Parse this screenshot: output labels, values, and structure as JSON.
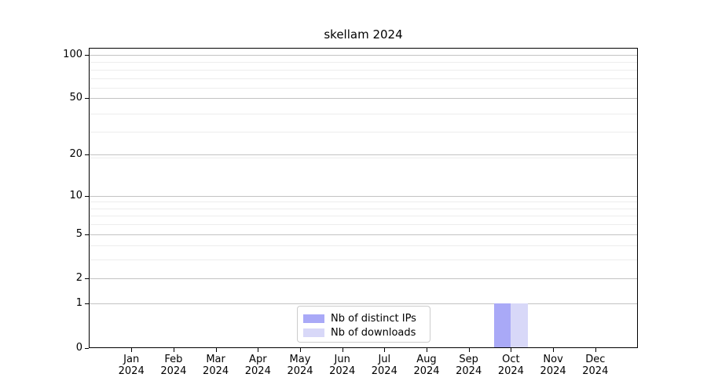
{
  "chart_data": {
    "type": "bar",
    "title": "skellam 2024",
    "categories": [
      "Jan 2024",
      "Feb 2024",
      "Mar 2024",
      "Apr 2024",
      "May 2024",
      "Jun 2024",
      "Jul 2024",
      "Aug 2024",
      "Sep 2024",
      "Oct 2024",
      "Nov 2024",
      "Dec 2024"
    ],
    "series": [
      {
        "name": "Nb of distinct IPs",
        "color": "#a9a9f7",
        "values": [
          0,
          0,
          0,
          0,
          0,
          0,
          0,
          0,
          0,
          1,
          0,
          0
        ]
      },
      {
        "name": "Nb of downloads",
        "color": "#d8d8f8",
        "values": [
          0,
          0,
          0,
          0,
          0,
          0,
          0,
          0,
          0,
          1,
          0,
          0
        ]
      }
    ],
    "yscale": "log1p",
    "yticks": [
      0,
      1,
      2,
      5,
      10,
      20,
      50,
      100
    ],
    "ylim": [
      0,
      112
    ],
    "xlabel": "",
    "ylabel": "",
    "grid": "both",
    "legend_position": "lower center",
    "colors": {
      "axis": "#000000",
      "grid_major": "#c3c3c3",
      "grid_minor": "#ededed",
      "legend_border": "#cccccc",
      "background": "#ffffff"
    }
  }
}
